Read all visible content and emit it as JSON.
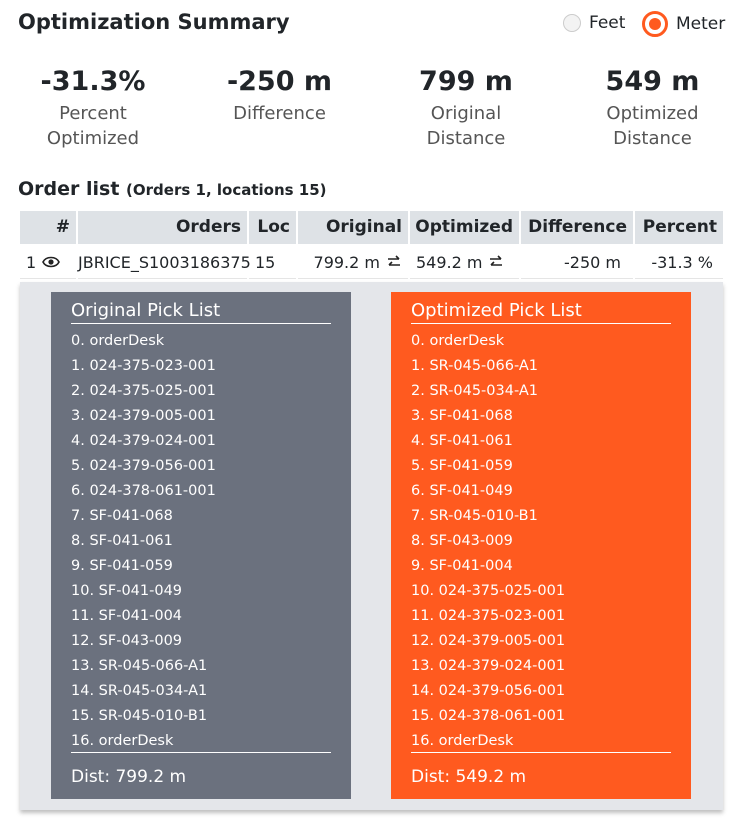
{
  "header": {
    "title": "Optimization Summary",
    "units": [
      {
        "label": "Feet",
        "selected": false
      },
      {
        "label": "Meter",
        "selected": true
      }
    ]
  },
  "stats": [
    {
      "value": "-31.3%",
      "label": "Percent Optimized"
    },
    {
      "value": "-250 m",
      "label": "Difference"
    },
    {
      "value": "799 m",
      "label": "Original Distance"
    },
    {
      "value": "549 m",
      "label": "Optimized Distance"
    }
  ],
  "order_list": {
    "title": "Order list",
    "subtitle": "(Orders 1, locations 15)",
    "table": {
      "headers": [
        "#",
        "Orders",
        "Loc",
        "Original",
        "Optimized",
        "Difference",
        "Percent"
      ],
      "rows": [
        [
          "1",
          "JBRICE_S1003186375",
          "15",
          "799.2 m",
          "549.2 m",
          "-250 m",
          "-31.3 %"
        ]
      ]
    }
  },
  "pick_lists": [
    {
      "title": "Original Pick List",
      "items": [
        "0. orderDesk",
        "1. 024-375-023-001",
        "2. 024-375-025-001",
        "3. 024-379-005-001",
        "4. 024-379-024-001",
        "5. 024-379-056-001",
        "6. 024-378-061-001",
        "7. SF-041-068",
        "8. SF-041-061",
        "9. SF-041-059",
        "10. SF-041-049",
        "11. SF-041-004",
        "12. SF-043-009",
        "13. SR-045-066-A1",
        "14. SR-045-034-A1",
        "15. SR-045-010-B1",
        "16. orderDesk"
      ],
      "dist": "Dist: 799.2 m"
    },
    {
      "title": "Optimized Pick List",
      "items": [
        "0. orderDesk",
        "1. SR-045-066-A1",
        "2. SR-045-034-A1",
        "3. SF-041-068",
        "4. SF-041-061",
        "5. SF-041-059",
        "6. SF-041-049",
        "7. SR-045-010-B1",
        "8. SF-043-009",
        "9. SF-041-004",
        "10. 024-375-025-001",
        "11. 024-375-023-001",
        "12. 024-379-005-001",
        "13. 024-379-024-001",
        "14. 024-379-056-001",
        "15. 024-378-061-001",
        "16. orderDesk"
      ],
      "dist": "Dist: 549.2 m"
    }
  ]
}
